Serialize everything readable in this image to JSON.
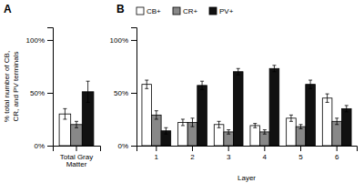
{
  "chart_data": [
    {
      "type": "bar",
      "title": "A",
      "ylabel": "% total number of CB,\nCR, and PV terminals",
      "categories": [
        "Total Gray\nMatter"
      ],
      "series": [
        {
          "color": "#ffffff",
          "values": [
            30
          ],
          "errors": [
            5
          ]
        },
        {
          "color": "#888888",
          "values": [
            20
          ],
          "errors": [
            3
          ]
        },
        {
          "color": "#111111",
          "values": [
            51
          ],
          "errors": [
            10
          ]
        }
      ],
      "ylim": [
        0,
        112
      ],
      "yticks": [
        {
          "value": 0,
          "label": "0%"
        },
        {
          "value": 50,
          "label": "50%"
        },
        {
          "value": 100,
          "label": "100%"
        }
      ]
    },
    {
      "type": "bar",
      "title": "B",
      "xlabel": "Layer",
      "categories": [
        "1",
        "2",
        "3",
        "4",
        "5",
        "6"
      ],
      "series": [
        {
          "name": "CB+",
          "color": "#ffffff",
          "values": [
            58,
            22,
            20,
            19,
            26,
            45
          ],
          "errors": [
            4,
            3,
            3,
            2,
            3,
            4
          ]
        },
        {
          "name": "CR+",
          "color": "#888888",
          "values": [
            29,
            22,
            13,
            13,
            18,
            23
          ],
          "errors": [
            4,
            4,
            2,
            2,
            2,
            3
          ]
        },
        {
          "name": "PV+",
          "color": "#111111",
          "values": [
            14,
            57,
            70,
            73,
            58,
            35
          ],
          "errors": [
            3,
            4,
            3,
            3,
            4,
            3
          ]
        }
      ],
      "ylim": [
        0,
        112
      ],
      "yticks": [
        {
          "value": 0,
          "label": "0%"
        },
        {
          "value": 50,
          "label": "50%"
        },
        {
          "value": 100,
          "label": "100%"
        }
      ],
      "legend": "upper left"
    }
  ]
}
